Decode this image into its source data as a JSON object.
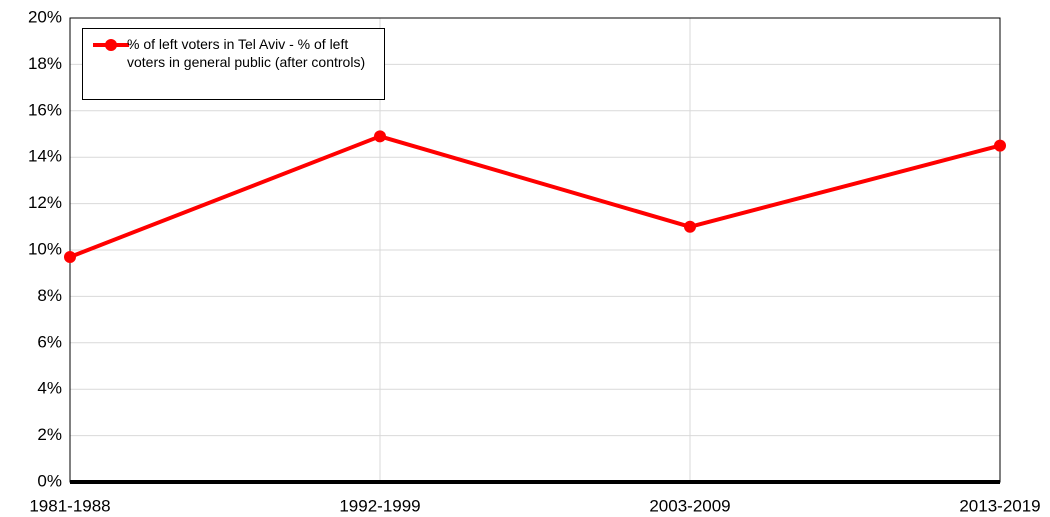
{
  "chart_data": {
    "type": "line",
    "categories": [
      "1981-1988",
      "1992-1999",
      "2003-2009",
      "2013-2019"
    ],
    "series": [
      {
        "name": "% of left voters in Tel Aviv - % of left voters in general public (after controls)",
        "color": "#ff0000",
        "values": [
          9.7,
          14.9,
          11.0,
          14.5
        ]
      }
    ],
    "ylim": [
      0,
      20
    ],
    "yticks": [
      {
        "value": 0,
        "label": "0%"
      },
      {
        "value": 2,
        "label": "2%"
      },
      {
        "value": 4,
        "label": "4%"
      },
      {
        "value": 6,
        "label": "6%"
      },
      {
        "value": 8,
        "label": "8%"
      },
      {
        "value": 10,
        "label": "10%"
      },
      {
        "value": 12,
        "label": "12%"
      },
      {
        "value": 14,
        "label": "14%"
      },
      {
        "value": 16,
        "label": "16%"
      },
      {
        "value": 18,
        "label": "18%"
      },
      {
        "value": 20,
        "label": "20%"
      }
    ],
    "grid": true,
    "legend": "upper left"
  }
}
